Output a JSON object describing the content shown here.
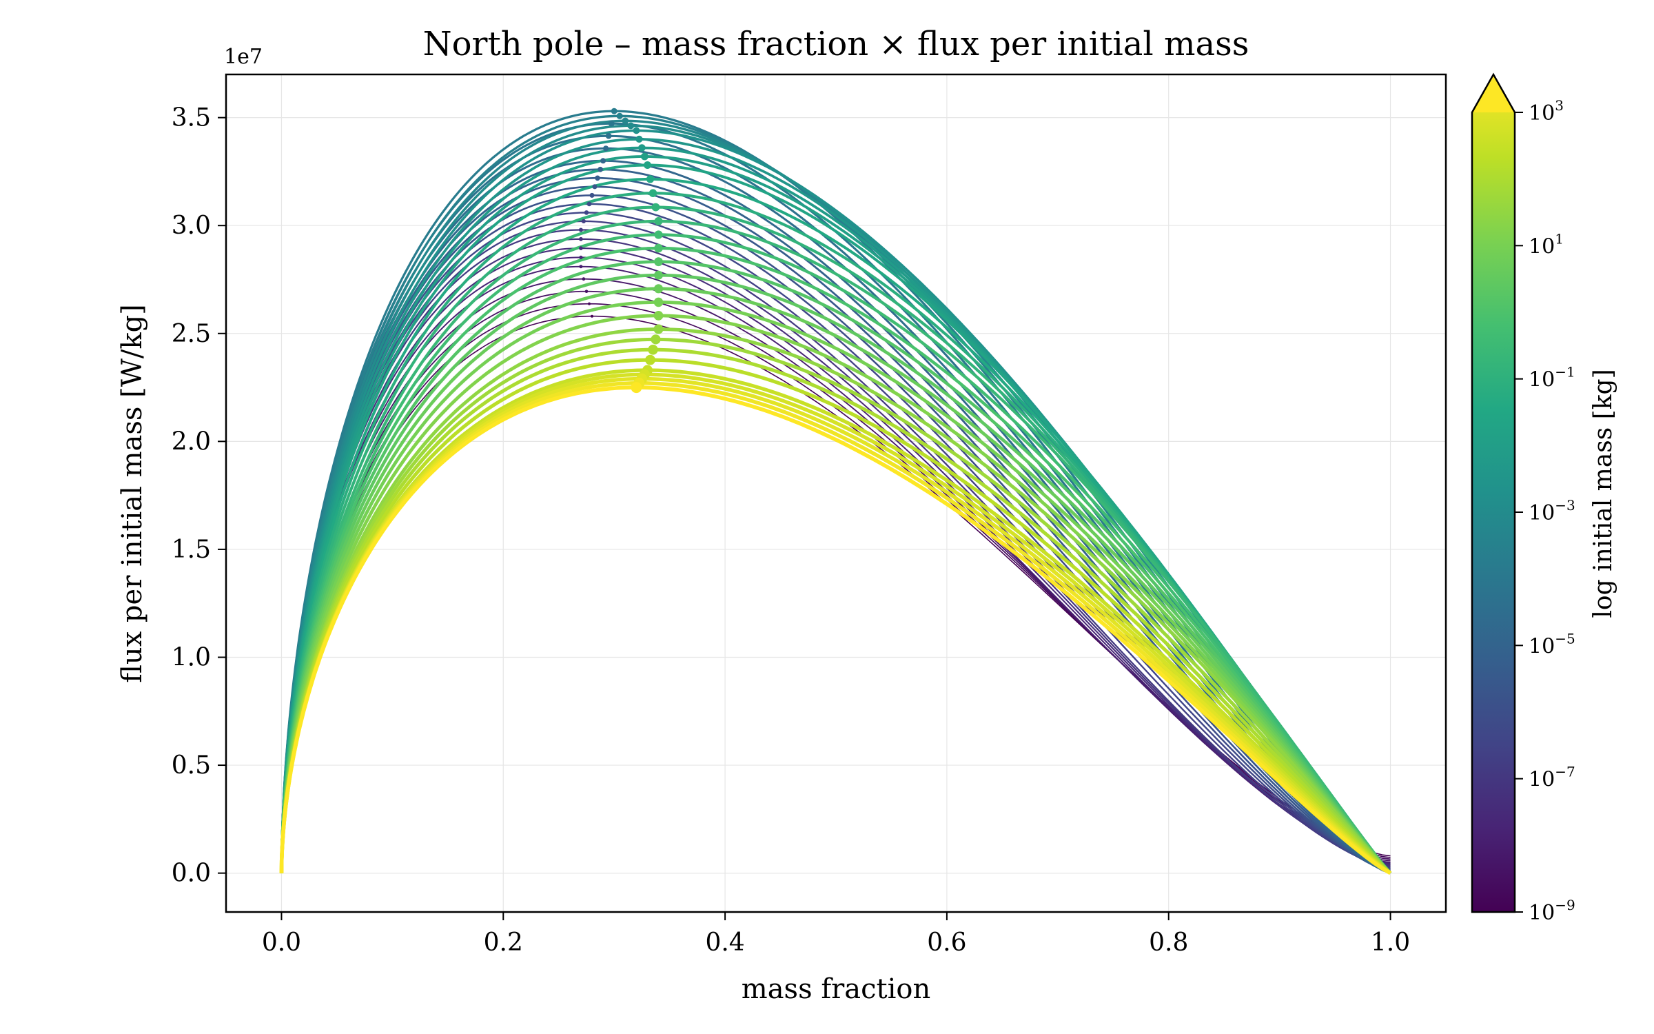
{
  "chart_data": {
    "type": "line",
    "title": "North pole – mass fraction × flux per initial mass",
    "xlabel": "mass fraction",
    "ylabel": "flux per initial mass [W/kg]",
    "y_offset_text": "1e7",
    "xlim": [
      -0.05,
      1.05
    ],
    "ylim": [
      -1800000.0,
      37000000.0
    ],
    "x_ticks": [
      0.0,
      0.2,
      0.4,
      0.6,
      0.8,
      1.0
    ],
    "x_tick_labels": [
      "0.0",
      "0.2",
      "0.4",
      "0.6",
      "0.8",
      "1.0"
    ],
    "y_ticks": [
      0,
      5000000,
      10000000,
      15000000,
      20000000,
      25000000,
      30000000,
      35000000
    ],
    "y_tick_labels": [
      "0.0",
      "0.5",
      "1.0",
      "1.5",
      "2.0",
      "2.5",
      "3.0",
      "3.5"
    ],
    "grid": true,
    "colorbar": {
      "label": "log initial mass [kg]",
      "colormap": "viridis",
      "scale": "log",
      "range": [
        1e-09,
        1000
      ],
      "extend": "max",
      "ticks": [
        {
          "base": "10",
          "exp": "3",
          "value": 1000
        },
        {
          "base": "10",
          "exp": "1",
          "value": 10
        },
        {
          "base": "10",
          "exp": "−1",
          "value": 0.1
        },
        {
          "base": "10",
          "exp": "−3",
          "value": 0.001
        },
        {
          "base": "10",
          "exp": "−5",
          "value": 1e-05
        },
        {
          "base": "10",
          "exp": "−7",
          "value": 1e-07
        },
        {
          "base": "10",
          "exp": "−9",
          "value": 1e-09
        }
      ]
    },
    "series_family": {
      "description_of_encoding": "each curve corresponds to one initial mass; color encodes log initial mass",
      "log10_mass_from": -9,
      "log10_mass_to": 3,
      "count": 49,
      "curves": [
        {
          "log10_mass": -9.0,
          "peak_x": 0.28,
          "peak_y": 25800000,
          "end_y": 800000
        },
        {
          "log10_mass": -8.0,
          "peak_x": 0.27,
          "peak_y": 28100000,
          "end_y": 500000
        },
        {
          "log10_mass": -7.0,
          "peak_x": 0.27,
          "peak_y": 29800000,
          "end_y": 300000
        },
        {
          "log10_mass": -6.0,
          "peak_x": 0.28,
          "peak_y": 31400000,
          "end_y": 100000
        },
        {
          "log10_mass": -5.0,
          "peak_x": 0.29,
          "peak_y": 33000000,
          "end_y": 0
        },
        {
          "log10_mass": -4.0,
          "peak_x": 0.3,
          "peak_y": 35300000,
          "end_y": 0
        },
        {
          "log10_mass": -3.0,
          "peak_x": 0.32,
          "peak_y": 34400000,
          "end_y": 0
        },
        {
          "log10_mass": -2.0,
          "peak_x": 0.33,
          "peak_y": 32800000,
          "end_y": 0
        },
        {
          "log10_mass": -1.0,
          "peak_x": 0.34,
          "peak_y": 30200000,
          "end_y": 0
        },
        {
          "log10_mass": 0.0,
          "peak_x": 0.34,
          "peak_y": 27700000,
          "end_y": 0
        },
        {
          "log10_mass": 1.0,
          "peak_x": 0.34,
          "peak_y": 25200000,
          "end_y": 0
        },
        {
          "log10_mass": 2.0,
          "peak_x": 0.33,
          "peak_y": 23300000,
          "end_y": 0
        },
        {
          "log10_mass": 3.0,
          "peak_x": 0.32,
          "peak_y": 22500000,
          "end_y": 0
        }
      ]
    }
  }
}
